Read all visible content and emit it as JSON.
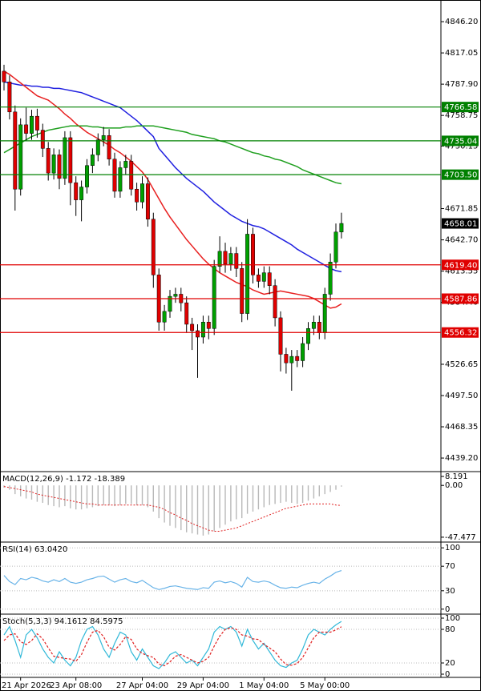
{
  "chart_data": [
    {
      "type": "candlestick",
      "categories": [
        null,
        null,
        null,
        "21 Apr 2026",
        null,
        null,
        null,
        null,
        null,
        null,
        null,
        null,
        null,
        "23 Apr 08:00",
        null,
        null,
        null,
        null,
        null,
        null,
        null,
        null,
        null,
        null,
        null,
        "27 Apr 04:00",
        null,
        null,
        null,
        null,
        null,
        null,
        null,
        null,
        null,
        null,
        "29 Apr 04:00",
        null,
        null,
        null,
        null,
        null,
        null,
        null,
        null,
        null,
        null,
        "1 May 04:00",
        null,
        null,
        null,
        null,
        null,
        null,
        null,
        null,
        null,
        null,
        "5 May 00:00",
        null,
        null,
        null
      ],
      "open": [
        4800,
        4790,
        4762,
        4690,
        4750,
        4742,
        4758,
        4745,
        4728,
        4705,
        4722,
        4700,
        4738,
        4696,
        4680,
        4692,
        4712,
        4722,
        4736,
        4740,
        4718,
        4688,
        4710,
        4716,
        4690,
        4678,
        4695,
        4662,
        4610,
        4566,
        4576,
        4590,
        4592,
        4584,
        4564,
        4558,
        4552,
        4566,
        4560,
        4618,
        4632,
        4620,
        4630,
        4616,
        4574,
        4648,
        4610,
        4604,
        4612,
        4600,
        4570,
        4536,
        4528,
        4534,
        4530,
        4546,
        4560,
        4566,
        4556,
        4592,
        4622,
        4650
      ],
      "high": [
        4806,
        4796,
        4768,
        4756,
        4766,
        4764,
        4765,
        4751,
        4734,
        4728,
        4727,
        4744,
        4744,
        4702,
        4698,
        4718,
        4728,
        4742,
        4748,
        4746,
        4724,
        4716,
        4722,
        4722,
        4696,
        4702,
        4701,
        4668,
        4616,
        4582,
        4596,
        4598,
        4598,
        4590,
        4570,
        4564,
        4572,
        4572,
        4624,
        4646,
        4640,
        4636,
        4636,
        4622,
        4662,
        4654,
        4616,
        4618,
        4618,
        4606,
        4576,
        4542,
        4540,
        4540,
        4552,
        4566,
        4572,
        4572,
        4598,
        4630,
        4658,
        4668
      ],
      "low": [
        4782,
        4755,
        4670,
        4684,
        4735,
        4736,
        4738,
        4720,
        4698,
        4699,
        4690,
        4694,
        4675,
        4665,
        4660,
        4686,
        4705,
        4716,
        4730,
        4712,
        4682,
        4682,
        4704,
        4684,
        4670,
        4672,
        4655,
        4598,
        4558,
        4558,
        4570,
        4584,
        4576,
        4556,
        4540,
        4514,
        4546,
        4550,
        4554,
        4612,
        4612,
        4614,
        4608,
        4566,
        4568,
        4602,
        4598,
        4598,
        4592,
        4562,
        4520,
        4518,
        4502,
        4524,
        4524,
        4540,
        4554,
        4550,
        4550,
        4586,
        4616,
        4644
      ],
      "close": [
        4790,
        4762,
        4690,
        4750,
        4742,
        4758,
        4745,
        4728,
        4705,
        4722,
        4700,
        4738,
        4696,
        4680,
        4692,
        4712,
        4722,
        4736,
        4740,
        4718,
        4688,
        4710,
        4716,
        4690,
        4678,
        4695,
        4662,
        4610,
        4566,
        4576,
        4590,
        4592,
        4584,
        4564,
        4558,
        4552,
        4566,
        4560,
        4618,
        4632,
        4620,
        4630,
        4616,
        4574,
        4648,
        4610,
        4604,
        4612,
        4600,
        4570,
        4536,
        4528,
        4534,
        4530,
        4546,
        4560,
        4566,
        4556,
        4592,
        4622,
        4650,
        4658.01
      ],
      "up_color": "#00a000",
      "down_color": "#e00000",
      "wick_color": "#000000",
      "series": [
        {
          "color": "#2020e0",
          "values": [
            4790,
            4789,
            4788,
            4787,
            4787,
            4786,
            4786,
            4785,
            4785,
            4784,
            4784,
            4783,
            4782,
            4781,
            4780,
            4778,
            4776,
            4774,
            4772,
            4770,
            4768,
            4766,
            4762,
            4758,
            4754,
            4749,
            4744,
            4739,
            4728,
            4722,
            4716,
            4710,
            4705,
            4700,
            4696,
            4692,
            4688,
            4683,
            4678,
            4674,
            4670,
            4666,
            4663,
            4660,
            4658,
            4656,
            4655,
            4653,
            4650,
            4647,
            4644,
            4641,
            4638,
            4634,
            4631,
            4628,
            4625,
            4622,
            4619,
            4616,
            4614,
            4613
          ]
        },
        {
          "color": "#e82020",
          "values": [
            4800,
            4797,
            4793,
            4789,
            4785,
            4781,
            4777,
            4775,
            4773,
            4769,
            4765,
            4760,
            4756,
            4751,
            4747,
            4743,
            4740,
            4737,
            4734,
            4731,
            4727,
            4724,
            4720,
            4716,
            4711,
            4706,
            4699,
            4690,
            4681,
            4672,
            4664,
            4657,
            4650,
            4643,
            4637,
            4631,
            4625,
            4620,
            4616,
            4612,
            4609,
            4606,
            4603,
            4601,
            4599,
            4596,
            4594,
            4592,
            4593,
            4594,
            4595,
            4594,
            4593,
            4592,
            4591,
            4590,
            4588,
            4585,
            4582,
            4579,
            4580,
            4583
          ]
        },
        {
          "color": "#20a020",
          "values": [
            4724,
            4727,
            4730,
            4733,
            4736,
            4739,
            4741,
            4743,
            4745,
            4746,
            4747,
            4748,
            4749,
            4749,
            4749,
            4749,
            4748,
            4748,
            4747,
            4747,
            4747,
            4747,
            4748,
            4748,
            4749,
            4749,
            4749,
            4749,
            4748,
            4747,
            4746,
            4745,
            4744,
            4743,
            4741,
            4740,
            4739,
            4738,
            4737,
            4735,
            4734,
            4732,
            4730,
            4728,
            4726,
            4724,
            4723,
            4721,
            4720,
            4718,
            4717,
            4715,
            4713,
            4711,
            4708,
            4706,
            4704,
            4702,
            4700,
            4698,
            4696,
            4695
          ]
        }
      ],
      "levels": [
        {
          "value": 4766.58,
          "label": "4766.58",
          "color": "#008000"
        },
        {
          "value": 4735.04,
          "label": "4735.04",
          "color": "#008000"
        },
        {
          "value": 4703.5,
          "label": "4703.50",
          "color": "#008000"
        },
        {
          "value": 4619.4,
          "label": "4619.40",
          "color": "#e00000"
        },
        {
          "value": 4587.86,
          "label": "4587.86",
          "color": "#e00000"
        },
        {
          "value": 4556.32,
          "label": "4556.32",
          "color": "#e00000"
        }
      ],
      "last_price": {
        "value": 4658.01,
        "label": "4658.01",
        "color": "#000000"
      },
      "ylim": [
        4427.3,
        4866.4
      ],
      "yticks": [
        {
          "value": 4846.2,
          "label": "4846.20"
        },
        {
          "value": 4817.05,
          "label": "4817.05"
        },
        {
          "value": 4787.9,
          "label": "4787.90"
        },
        {
          "value": 4758.75,
          "label": "4758.75"
        },
        {
          "value": 4730.15,
          "label": "4730.15"
        },
        {
          "value": 4671.85,
          "label": "4671.85"
        },
        {
          "value": 4642.7,
          "label": "4642.70"
        },
        {
          "value": 4613.55,
          "label": "4613.55"
        },
        {
          "value": 4584.4,
          "label": "4584.40"
        },
        {
          "value": 4526.65,
          "label": "4526.65"
        },
        {
          "value": 4497.5,
          "label": "4497.50"
        },
        {
          "value": 4468.35,
          "label": "4468.35"
        },
        {
          "value": 4439.2,
          "label": "4439.20"
        }
      ]
    },
    {
      "type": "macd",
      "title": "MACD(12,26,9) -1.172 -18.389",
      "series": [
        {
          "style": "histogram",
          "color": "#b8b8b8",
          "values": [
            -2,
            -4,
            -8,
            -10,
            -12,
            -13,
            -15,
            -16,
            -18,
            -19,
            -20,
            -19,
            -21,
            -22,
            -22,
            -21,
            -20,
            -19,
            -18,
            -18,
            -19,
            -18,
            -17,
            -17,
            -18,
            -18,
            -20,
            -24,
            -30,
            -34,
            -37,
            -39,
            -41,
            -43,
            -44,
            -45,
            -46,
            -45,
            -42,
            -39,
            -36,
            -33,
            -31,
            -30,
            -26,
            -24,
            -22,
            -20,
            -18,
            -17,
            -16,
            -15,
            -16,
            -17,
            -16,
            -14,
            -12,
            -10,
            -8,
            -6,
            -4,
            -1.172
          ]
        },
        {
          "style": "dashed",
          "color": "#e02020",
          "values": [
            -1,
            -2,
            -3,
            -4,
            -5,
            -6,
            -8,
            -9,
            -10,
            -11,
            -12,
            -13,
            -14,
            -15,
            -16,
            -17,
            -17,
            -18,
            -18,
            -18,
            -18,
            -18,
            -18,
            -18,
            -18,
            -18,
            -18,
            -19,
            -20,
            -22,
            -25,
            -27,
            -30,
            -32,
            -35,
            -37,
            -39,
            -41,
            -42,
            -42,
            -41,
            -40,
            -39,
            -37,
            -35,
            -33,
            -31,
            -29,
            -27,
            -25,
            -23,
            -21,
            -20,
            -19,
            -18,
            -17,
            -17,
            -17,
            -17,
            -17,
            -18,
            -18.389
          ]
        }
      ],
      "ylim": [
        -51.2,
        11.9
      ],
      "yticks": [
        8.191,
        {
          "value": 0,
          "label": "0.00"
        },
        -47.477
      ]
    },
    {
      "type": "line",
      "title": "RSI(14) 63.0420",
      "series": [
        {
          "style": "solid",
          "color": "#6ab4e8",
          "values": [
            55,
            45,
            40,
            50,
            48,
            52,
            50,
            46,
            44,
            48,
            45,
            50,
            44,
            42,
            44,
            48,
            50,
            53,
            54,
            49,
            44,
            48,
            50,
            45,
            43,
            47,
            41,
            35,
            32,
            34,
            37,
            38,
            36,
            34,
            33,
            32,
            35,
            34,
            44,
            46,
            43,
            45,
            42,
            36,
            52,
            45,
            44,
            46,
            44,
            39,
            35,
            34,
            36,
            35,
            39,
            42,
            44,
            42,
            49,
            54,
            60,
            63.042
          ]
        }
      ],
      "ylim": [
        -6.8,
        108.1
      ],
      "yticks": [
        100,
        70,
        30,
        0
      ],
      "grid": true
    },
    {
      "type": "line",
      "title": "Stoch(5,3,3) 94.1612 84.5975",
      "series": [
        {
          "style": "solid",
          "color": "#30b8d8",
          "values": [
            70,
            85,
            60,
            30,
            70,
            80,
            65,
            45,
            30,
            20,
            40,
            25,
            15,
            30,
            60,
            80,
            85,
            70,
            45,
            30,
            55,
            75,
            70,
            40,
            25,
            45,
            30,
            15,
            10,
            20,
            35,
            40,
            30,
            20,
            25,
            15,
            30,
            45,
            75,
            85,
            80,
            85,
            75,
            50,
            80,
            60,
            45,
            55,
            40,
            25,
            15,
            12,
            20,
            25,
            45,
            70,
            80,
            75,
            70,
            80,
            88,
            94.1612
          ]
        },
        {
          "style": "dashed",
          "color": "#e02020",
          "values": [
            60,
            70,
            72,
            58,
            53,
            60,
            72,
            63,
            47,
            32,
            30,
            28,
            27,
            23,
            35,
            57,
            75,
            78,
            67,
            48,
            43,
            53,
            67,
            62,
            45,
            37,
            33,
            30,
            18,
            15,
            22,
            32,
            35,
            30,
            25,
            20,
            23,
            30,
            50,
            68,
            80,
            83,
            80,
            70,
            68,
            63,
            62,
            53,
            47,
            40,
            27,
            17,
            16,
            19,
            30,
            47,
            65,
            75,
            75,
            75,
            79,
            84.5975
          ]
        }
      ],
      "ylim": [
        -5.7,
        105.7
      ],
      "yticks": [
        100,
        80,
        20,
        0
      ],
      "grid": true
    }
  ]
}
